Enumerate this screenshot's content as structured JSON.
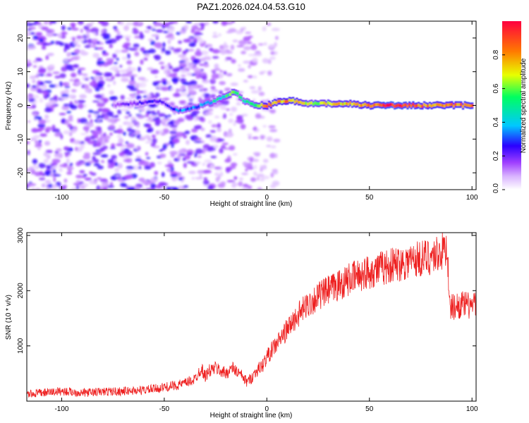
{
  "chart_data": [
    {
      "type": "heatmap",
      "title": "PAZ1.2026.024.04.53.G10",
      "xlabel": "Height of straight line (km)",
      "ylabel": "Frequency (Hz)",
      "xlim": [
        -117,
        102
      ],
      "ylim": [
        -25,
        25
      ],
      "xticks": [
        -100,
        -50,
        0,
        50,
        100
      ],
      "yticks": [
        20,
        10,
        0,
        -10,
        -20
      ],
      "colorbar": {
        "label": "Normalized spectral amplitude",
        "range": [
          0,
          1
        ],
        "ticks": [
          "0.0",
          "0.2",
          "0.4",
          "0.6",
          "0.8"
        ],
        "colors": [
          "#ffffff",
          "#d9b3ff",
          "#a040ff",
          "#2a00ff",
          "#00c8ff",
          "#00ff60",
          "#e8ff00",
          "#ff7a00",
          "#ff0040"
        ]
      },
      "ridge": {
        "height_km": [
          -75,
          -65,
          -55,
          -50,
          -45,
          -40,
          -35,
          -30,
          -25,
          -20,
          -17,
          -15,
          -12,
          -8,
          -5,
          0,
          5,
          10,
          15,
          20,
          30,
          40,
          50,
          60,
          70,
          80,
          90,
          100
        ],
        "frequency_hz": [
          0,
          0.5,
          1.5,
          0.5,
          -1.5,
          -1.5,
          -0.5,
          0.5,
          1.5,
          3,
          4,
          3.5,
          1.5,
          0.5,
          0,
          0,
          1,
          1.5,
          1,
          0.5,
          0.5,
          0.5,
          0,
          0,
          0,
          0,
          0,
          0
        ],
        "amplitude": [
          0.25,
          0.3,
          0.35,
          0.3,
          0.4,
          0.45,
          0.45,
          0.5,
          0.55,
          0.6,
          0.7,
          0.6,
          0.55,
          0.6,
          0.7,
          0.85,
          0.8,
          0.85,
          0.8,
          0.7,
          0.75,
          0.8,
          0.85,
          0.95,
          0.9,
          0.85,
          0.85,
          0.9
        ]
      },
      "noise_region_km": [
        -117,
        -40
      ]
    },
    {
      "type": "line",
      "xlabel": "Height of straight line (km)",
      "ylabel": "SNR (10 * v/v)",
      "xlim": [
        -117,
        102
      ],
      "ylim": [
        0,
        3050
      ],
      "xticks": [
        -100,
        -50,
        0,
        50,
        100
      ],
      "yticks": [
        1000,
        2000,
        3000
      ],
      "line_color": "#ee2020",
      "series": [
        {
          "name": "SNR",
          "x": [
            -117,
            -110,
            -100,
            -90,
            -80,
            -70,
            -60,
            -55,
            -50,
            -45,
            -40,
            -35,
            -32,
            -30,
            -28,
            -25,
            -20,
            -17,
            -15,
            -12,
            -10,
            -8,
            -5,
            -2,
            0,
            5,
            10,
            15,
            20,
            25,
            30,
            35,
            40,
            45,
            50,
            55,
            60,
            65,
            70,
            75,
            80,
            85,
            88,
            89,
            90,
            95,
            100,
            102
          ],
          "y": [
            120,
            150,
            180,
            150,
            170,
            180,
            200,
            220,
            250,
            280,
            320,
            400,
            600,
            450,
            550,
            600,
            500,
            600,
            550,
            450,
            350,
            400,
            550,
            650,
            800,
            1050,
            1300,
            1550,
            1750,
            1900,
            2000,
            2100,
            2200,
            2280,
            2350,
            2400,
            2450,
            2500,
            2550,
            2580,
            2620,
            2700,
            2800,
            1700,
            1700,
            1750,
            1720,
            1750
          ]
        }
      ]
    }
  ]
}
